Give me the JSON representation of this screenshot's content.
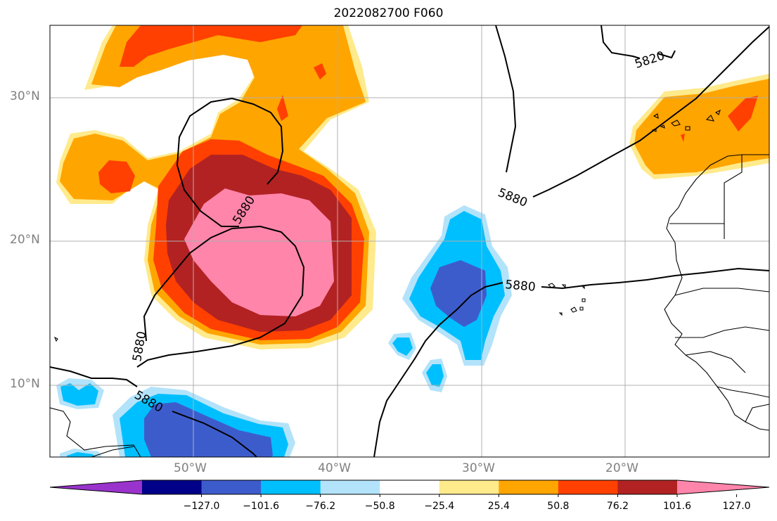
{
  "title": "2022082700 F060",
  "lat_labels": [
    "30°N",
    "20°N",
    "10°N"
  ],
  "lon_labels": [
    "50°W",
    "40°W",
    "30°W",
    "20°W"
  ],
  "contour_labels": [
    "5820",
    "5880",
    "5880",
    "5880",
    "5880",
    "5880"
  ],
  "colorbar": {
    "ticks": [
      "−127.0",
      "−101.6",
      "−76.2",
      "−50.8",
      "−25.4",
      "25.4",
      "50.8",
      "76.2",
      "101.6",
      "127.0"
    ],
    "colors": [
      "#9933cc",
      "#000088",
      "#3d5ccc",
      "#00bfff",
      "#b3e3fa",
      "#ffffff",
      "#ffea8c",
      "#ffa500",
      "#ff4000",
      "#b22222",
      "#ff85aa"
    ]
  },
  "colors": {
    "frame": "#000000",
    "grid": "#b0b0b0",
    "coast": "#000000"
  }
}
